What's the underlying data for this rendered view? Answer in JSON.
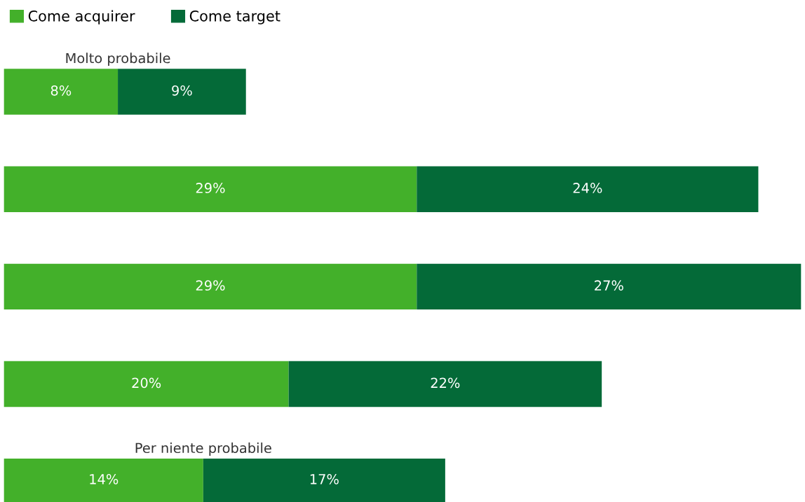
{
  "chart_data": {
    "type": "bar",
    "orientation": "horizontal",
    "stacked": true,
    "categories": [
      "Molto probabile",
      null,
      null,
      null,
      "Per niente probabile"
    ],
    "series": [
      {
        "name": "Come acquirer",
        "color": "#43b02a",
        "values": [
          8,
          29,
          29,
          20,
          14
        ],
        "value_labels": [
          "8%",
          "29%",
          "29%",
          "20%",
          "14%"
        ]
      },
      {
        "name": "Come target",
        "color": "#046a38",
        "values": [
          9,
          24,
          27,
          22,
          17
        ],
        "value_labels": [
          "9%",
          "24%",
          "27%",
          "22%",
          "17%"
        ]
      }
    ],
    "legend": "top left"
  }
}
